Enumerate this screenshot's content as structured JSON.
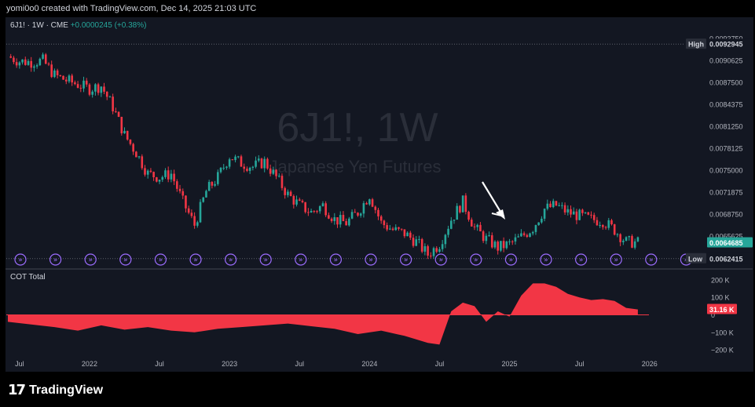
{
  "header": {
    "attribution": "yomi0o0 created with TradingView.com, Dec 14, 2025 21:03 UTC"
  },
  "legend": {
    "symbol": "6J1! · 1W · CME",
    "change": "+0.0000245 (+0.38%)"
  },
  "watermark": {
    "ticker": "6J1!, 1W",
    "name": "Japanese Yen Futures"
  },
  "footer": {
    "brand": "TradingView"
  },
  "colors": {
    "up": "#26a69a",
    "down": "#f23645",
    "background": "#131722",
    "event": "#9c6cff"
  },
  "chart_data": [
    {
      "type": "candlestick",
      "title": "6J1! · 1W · CME",
      "x_ticks": [
        "Jul",
        "2022",
        "Jul",
        "2023",
        "Jul",
        "2024",
        "Jul",
        "2025",
        "Jul",
        "2026"
      ],
      "y_ticks": [
        "0.0093750",
        "0.0090625",
        "0.0087500",
        "0.0084375",
        "0.0081250",
        "0.0078125",
        "0.0075000",
        "0.0071875",
        "0.0068750",
        "0.0065625"
      ],
      "ylim": [
        0.00615,
        0.00942
      ],
      "high": {
        "label": "High",
        "value": "0.0092945"
      },
      "low": {
        "label": "Low",
        "value": "0.0062415"
      },
      "last": {
        "value": "0.0064685"
      },
      "grid": false,
      "annotation": "white arrow pointing down",
      "event_markers_count": 20,
      "close_path": [
        [
          "2021-06",
          0.00912
        ],
        [
          "2021-07",
          0.00905
        ],
        [
          "2021-08",
          0.00904
        ],
        [
          "2021-09",
          0.00906
        ],
        [
          "2021-10",
          0.00885
        ],
        [
          "2021-11",
          0.00878
        ],
        [
          "2021-12",
          0.00872
        ],
        [
          "2022-01",
          0.00866
        ],
        [
          "2022-02",
          0.0087
        ],
        [
          "2022-03",
          0.0084
        ],
        [
          "2022-04",
          0.008
        ],
        [
          "2022-05",
          0.00775
        ],
        [
          "2022-06",
          0.00745
        ],
        [
          "2022-07",
          0.0074
        ],
        [
          "2022-08",
          0.00745
        ],
        [
          "2022-09",
          0.00705
        ],
        [
          "2022-10",
          0.00672
        ],
        [
          "2022-11",
          0.0072
        ],
        [
          "2022-12",
          0.0074
        ],
        [
          "2023-01",
          0.0077
        ],
        [
          "2023-02",
          0.0076
        ],
        [
          "2023-03",
          0.00755
        ],
        [
          "2023-04",
          0.00762
        ],
        [
          "2023-05",
          0.0074
        ],
        [
          "2023-06",
          0.00715
        ],
        [
          "2023-07",
          0.007
        ],
        [
          "2023-08",
          0.0069
        ],
        [
          "2023-09",
          0.007
        ],
        [
          "2023-10",
          0.0068
        ],
        [
          "2023-11",
          0.00675
        ],
        [
          "2023-12",
          0.0069
        ],
        [
          "2024-01",
          0.00715
        ],
        [
          "2024-02",
          0.00675
        ],
        [
          "2024-03",
          0.00665
        ],
        [
          "2024-04",
          0.0066
        ],
        [
          "2024-05",
          0.00648
        ],
        [
          "2024-06",
          0.0063
        ],
        [
          "2024-07",
          0.00645
        ],
        [
          "2024-08",
          0.0068
        ],
        [
          "2024-09",
          0.00705
        ],
        [
          "2024-10",
          0.00668
        ],
        [
          "2024-11",
          0.00652
        ],
        [
          "2024-12",
          0.0064
        ],
        [
          "2025-01",
          0.00645
        ],
        [
          "2025-02",
          0.00655
        ],
        [
          "2025-03",
          0.00668
        ],
        [
          "2025-04",
          0.00695
        ],
        [
          "2025-05",
          0.007
        ],
        [
          "2025-06",
          0.0069
        ],
        [
          "2025-07",
          0.00685
        ],
        [
          "2025-08",
          0.0068
        ],
        [
          "2025-09",
          0.00678
        ],
        [
          "2025-10",
          0.00665
        ],
        [
          "2025-11",
          0.00648
        ],
        [
          "2025-12",
          0.00647
        ]
      ]
    },
    {
      "type": "area",
      "title": "COT Total",
      "y_ticks": [
        "200 K",
        "100 K",
        "0",
        "−100 K",
        "−200 K"
      ],
      "ylim": [
        -240000,
        240000
      ],
      "last": {
        "value": "31.16 K"
      },
      "series": [
        {
          "values": [
            [
              "2021-06",
              -40000
            ],
            [
              "2021-08",
              -55000
            ],
            [
              "2021-10",
              -70000
            ],
            [
              "2021-12",
              -90000
            ],
            [
              "2022-02",
              -60000
            ],
            [
              "2022-04",
              -85000
            ],
            [
              "2022-06",
              -70000
            ],
            [
              "2022-08",
              -90000
            ],
            [
              "2022-10",
              -100000
            ],
            [
              "2022-12",
              -80000
            ],
            [
              "2023-02",
              -70000
            ],
            [
              "2023-04",
              -60000
            ],
            [
              "2023-06",
              -50000
            ],
            [
              "2023-08",
              -65000
            ],
            [
              "2023-10",
              -80000
            ],
            [
              "2023-12",
              -110000
            ],
            [
              "2024-02",
              -90000
            ],
            [
              "2024-04",
              -120000
            ],
            [
              "2024-06",
              -160000
            ],
            [
              "2024-07",
              -170000
            ],
            [
              "2024-08",
              20000
            ],
            [
              "2024-09",
              70000
            ],
            [
              "2024-10",
              50000
            ],
            [
              "2024-11",
              -40000
            ],
            [
              "2024-12",
              20000
            ],
            [
              "2025-01",
              -10000
            ],
            [
              "2025-02",
              110000
            ],
            [
              "2025-03",
              180000
            ],
            [
              "2025-04",
              180000
            ],
            [
              "2025-05",
              160000
            ],
            [
              "2025-06",
              120000
            ],
            [
              "2025-07",
              100000
            ],
            [
              "2025-08",
              85000
            ],
            [
              "2025-09",
              90000
            ],
            [
              "2025-10",
              80000
            ],
            [
              "2025-11",
              40000
            ],
            [
              "2025-12",
              31160
            ]
          ]
        }
      ]
    }
  ]
}
